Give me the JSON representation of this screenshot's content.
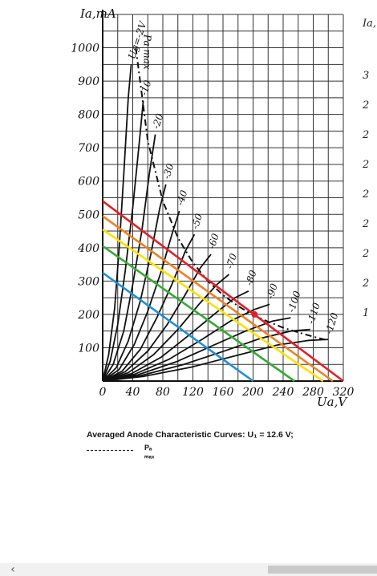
{
  "chart_data": {
    "type": "line",
    "title": "",
    "y_axis_label": "Ia,mA",
    "x_axis_label": "Ua,V",
    "x_ticks": [
      "0",
      "40",
      "80",
      "120",
      "160",
      "200",
      "240",
      "280",
      "320"
    ],
    "y_ticks": [
      "100",
      "200",
      "300",
      "400",
      "500",
      "600",
      "700",
      "800",
      "900",
      "1000"
    ],
    "xlim": [
      0,
      320
    ],
    "ylim": [
      0,
      1100
    ],
    "grid": true,
    "grid_label": "Ug=-2V",
    "pamax_label": "Pa max",
    "series": [
      {
        "name": "Ug=-2V",
        "points": [
          [
            0,
            0
          ],
          [
            8,
            80
          ],
          [
            16,
            220
          ],
          [
            22,
            400
          ],
          [
            28,
            620
          ],
          [
            34,
            850
          ],
          [
            38,
            950
          ]
        ]
      },
      {
        "name": "-10",
        "points": [
          [
            0,
            0
          ],
          [
            10,
            60
          ],
          [
            20,
            170
          ],
          [
            30,
            330
          ],
          [
            40,
            520
          ],
          [
            48,
            700
          ],
          [
            54,
            840
          ]
        ]
      },
      {
        "name": "-20",
        "points": [
          [
            0,
            0
          ],
          [
            14,
            50
          ],
          [
            28,
            150
          ],
          [
            40,
            290
          ],
          [
            52,
            450
          ],
          [
            62,
            620
          ],
          [
            70,
            740
          ]
        ]
      },
      {
        "name": "-30",
        "points": [
          [
            0,
            0
          ],
          [
            18,
            40
          ],
          [
            34,
            120
          ],
          [
            50,
            240
          ],
          [
            64,
            380
          ],
          [
            76,
            520
          ],
          [
            84,
            590
          ]
        ]
      },
      {
        "name": "-40",
        "points": [
          [
            0,
            0
          ],
          [
            22,
            35
          ],
          [
            42,
            110
          ],
          [
            60,
            210
          ],
          [
            78,
            330
          ],
          [
            92,
            440
          ],
          [
            102,
            510
          ]
        ]
      },
      {
        "name": "-50",
        "points": [
          [
            0,
            0
          ],
          [
            26,
            30
          ],
          [
            50,
            95
          ],
          [
            72,
            190
          ],
          [
            92,
            290
          ],
          [
            110,
            390
          ],
          [
            122,
            440
          ]
        ]
      },
      {
        "name": "-60",
        "points": [
          [
            0,
            0
          ],
          [
            30,
            28
          ],
          [
            60,
            90
          ],
          [
            86,
            170
          ],
          [
            110,
            260
          ],
          [
            130,
            340
          ],
          [
            144,
            380
          ]
        ]
      },
      {
        "name": "-70",
        "points": [
          [
            0,
            0
          ],
          [
            34,
            25
          ],
          [
            68,
            80
          ],
          [
            100,
            155
          ],
          [
            128,
            230
          ],
          [
            152,
            290
          ],
          [
            168,
            320
          ]
        ]
      },
      {
        "name": "-80",
        "points": [
          [
            0,
            0
          ],
          [
            38,
            22
          ],
          [
            78,
            72
          ],
          [
            116,
            140
          ],
          [
            148,
            200
          ],
          [
            176,
            250
          ],
          [
            194,
            270
          ]
        ]
      },
      {
        "name": "-90",
        "points": [
          [
            0,
            0
          ],
          [
            42,
            20
          ],
          [
            88,
            65
          ],
          [
            132,
            125
          ],
          [
            170,
            180
          ],
          [
            202,
            215
          ],
          [
            222,
            230
          ]
        ]
      },
      {
        "name": "-100",
        "points": [
          [
            0,
            0
          ],
          [
            46,
            18
          ],
          [
            98,
            58
          ],
          [
            148,
            108
          ],
          [
            190,
            150
          ],
          [
            226,
            180
          ],
          [
            250,
            190
          ]
        ]
      },
      {
        "name": "-110",
        "points": [
          [
            0,
            0
          ],
          [
            50,
            16
          ],
          [
            108,
            50
          ],
          [
            164,
            92
          ],
          [
            210,
            128
          ],
          [
            250,
            150
          ],
          [
            276,
            155
          ]
        ]
      },
      {
        "name": "-120",
        "points": [
          [
            0,
            0
          ],
          [
            54,
            14
          ],
          [
            118,
            42
          ],
          [
            180,
            78
          ],
          [
            232,
            108
          ],
          [
            274,
            122
          ],
          [
            300,
            125
          ]
        ]
      }
    ],
    "pa_max_curve": [
      [
        44,
        1000
      ],
      [
        60,
        720
      ],
      [
        80,
        540
      ],
      [
        100,
        430
      ],
      [
        120,
        355
      ],
      [
        140,
        300
      ],
      [
        160,
        258
      ],
      [
        180,
        225
      ],
      [
        200,
        198
      ],
      [
        220,
        178
      ],
      [
        240,
        160
      ],
      [
        260,
        146
      ],
      [
        280,
        133
      ],
      [
        300,
        122
      ]
    ],
    "load_lines": [
      {
        "color": "#e31f26",
        "points": [
          [
            0,
            540
          ],
          [
            320,
            0
          ]
        ]
      },
      {
        "color": "#f0801f",
        "points": [
          [
            0,
            495
          ],
          [
            306,
            0
          ]
        ]
      },
      {
        "color": "#ffe000",
        "points": [
          [
            0,
            455
          ],
          [
            293,
            0
          ]
        ]
      },
      {
        "color": "#38a935",
        "points": [
          [
            0,
            405
          ],
          [
            255,
            0
          ]
        ]
      },
      {
        "color": "#1f8fd6",
        "points": [
          [
            0,
            325
          ],
          [
            200,
            0
          ]
        ]
      }
    ],
    "operating_point": {
      "x": 202,
      "y": 200,
      "color": "#e31f26"
    }
  },
  "caption": {
    "text": "Averaged Anode Characteristic Curves: U₁ = 12.6 V;",
    "legend_label": "Pₐ ₘₐₓ"
  },
  "cut_column": [
    "Ia,",
    "3",
    "2",
    "2",
    "2",
    "2",
    "2",
    "2",
    "2",
    "1"
  ],
  "scrollbar": {
    "left_arrow": "‹"
  }
}
